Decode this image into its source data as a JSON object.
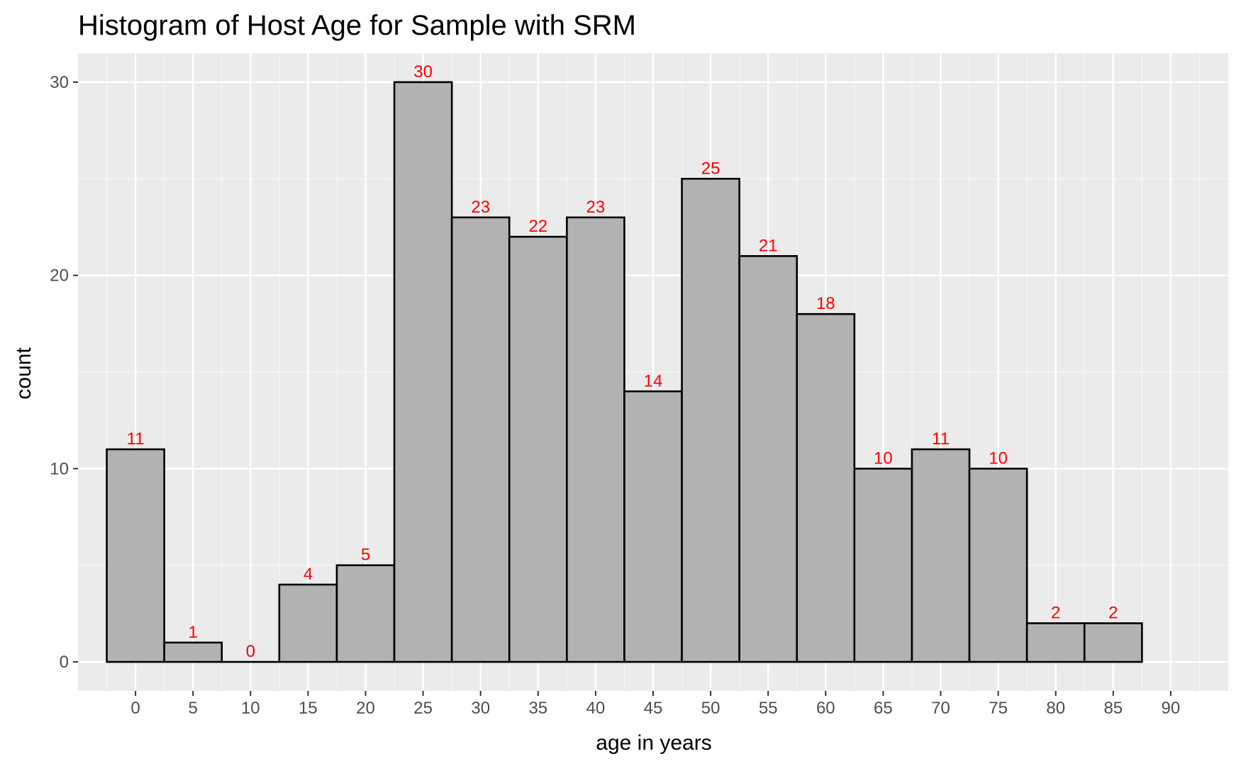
{
  "chart_data": {
    "type": "bar",
    "title": "Histogram of Host Age for Sample with SRM",
    "xlabel": "age in years",
    "ylabel": "count",
    "categories": [
      "0",
      "5",
      "10",
      "15",
      "20",
      "25",
      "30",
      "35",
      "40",
      "45",
      "50",
      "55",
      "60",
      "65",
      "70",
      "75",
      "80",
      "85"
    ],
    "values": [
      11,
      1,
      0,
      4,
      5,
      30,
      23,
      22,
      23,
      14,
      25,
      21,
      18,
      10,
      11,
      10,
      2,
      2
    ],
    "bin_width": 5,
    "xlim": [
      -5,
      95
    ],
    "ylim": [
      -1.5,
      31.5
    ],
    "x_ticks": [
      0,
      5,
      10,
      15,
      20,
      25,
      30,
      35,
      40,
      45,
      50,
      55,
      60,
      65,
      70,
      75,
      80,
      85,
      90
    ],
    "y_ticks": [
      0,
      10,
      20,
      30
    ],
    "grid": true,
    "bar_labels": true,
    "colors": {
      "panel_background": "#ebebeb",
      "grid_major": "#ffffff",
      "grid_minor": "#f7f7f7",
      "bar_fill": "#b2b2b2",
      "bar_outline": "#000000",
      "bar_label": "#ff0000",
      "tick_label": "#4d4d4d",
      "tick_mark": "#333333",
      "text": "#000000"
    }
  }
}
